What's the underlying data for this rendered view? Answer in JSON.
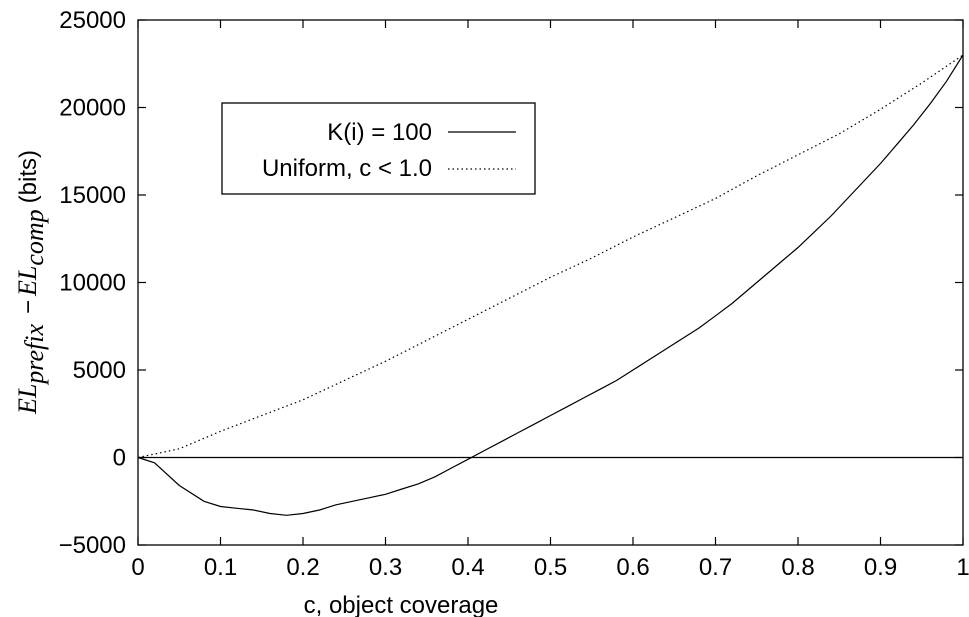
{
  "chart_data": {
    "type": "line",
    "xlabel": "c, object coverage",
    "ylabel": {
      "part1": "EL",
      "sub1": "prefix",
      "minus": "−",
      "part2": "EL",
      "sub2": "comp",
      "unit": "(bits)"
    },
    "xlim": [
      0,
      1
    ],
    "ylim": [
      -5000,
      25000
    ],
    "x_ticks": [
      0,
      0.1,
      0.2,
      0.3,
      0.4,
      0.5,
      0.6,
      0.7,
      0.8,
      0.9,
      1
    ],
    "x_tick_labels": [
      "0",
      "0.1",
      "0.2",
      "0.3",
      "0.4",
      "0.5",
      "0.6",
      "0.7",
      "0.8",
      "0.9",
      "1"
    ],
    "y_ticks": [
      -5000,
      0,
      5000,
      10000,
      15000,
      20000,
      25000
    ],
    "y_tick_labels": [
      "−5000",
      "0",
      "5000",
      "10000",
      "15000",
      "20000",
      "25000"
    ],
    "grid": false,
    "zero_line": true,
    "legend": {
      "placement": "upper-left",
      "entries": [
        "K(i) = 100",
        "Uniform, c < 1.0"
      ]
    },
    "series": [
      {
        "name": "K(i) = 100",
        "style": "solid",
        "x": [
          0.0,
          0.02,
          0.05,
          0.08,
          0.1,
          0.12,
          0.14,
          0.16,
          0.18,
          0.2,
          0.22,
          0.24,
          0.26,
          0.28,
          0.3,
          0.32,
          0.34,
          0.36,
          0.38,
          0.4,
          0.42,
          0.44,
          0.46,
          0.48,
          0.5,
          0.52,
          0.54,
          0.56,
          0.58,
          0.6,
          0.62,
          0.64,
          0.66,
          0.68,
          0.7,
          0.72,
          0.74,
          0.76,
          0.78,
          0.8,
          0.82,
          0.84,
          0.86,
          0.88,
          0.9,
          0.92,
          0.94,
          0.96,
          0.98,
          1.0
        ],
        "y": [
          0,
          -300,
          -1600,
          -2500,
          -2800,
          -2900,
          -3000,
          -3200,
          -3300,
          -3200,
          -3000,
          -2700,
          -2500,
          -2300,
          -2100,
          -1800,
          -1500,
          -1100,
          -600,
          -100,
          400,
          900,
          1400,
          1900,
          2400,
          2900,
          3400,
          3900,
          4400,
          5000,
          5600,
          6200,
          6800,
          7400,
          8100,
          8800,
          9600,
          10400,
          11200,
          12000,
          12900,
          13800,
          14800,
          15800,
          16800,
          17900,
          19000,
          20200,
          21500,
          23000
        ]
      },
      {
        "name": "Uniform, c < 1.0",
        "style": "dotted",
        "x": [
          0.0,
          0.05,
          0.1,
          0.15,
          0.2,
          0.25,
          0.3,
          0.35,
          0.4,
          0.45,
          0.5,
          0.55,
          0.6,
          0.65,
          0.7,
          0.75,
          0.8,
          0.85,
          0.9,
          0.95,
          1.0
        ],
        "y": [
          0,
          500,
          1500,
          2400,
          3300,
          4400,
          5500,
          6700,
          7900,
          9100,
          10300,
          11400,
          12600,
          13700,
          14800,
          16100,
          17300,
          18500,
          19900,
          21400,
          23000
        ]
      }
    ]
  }
}
